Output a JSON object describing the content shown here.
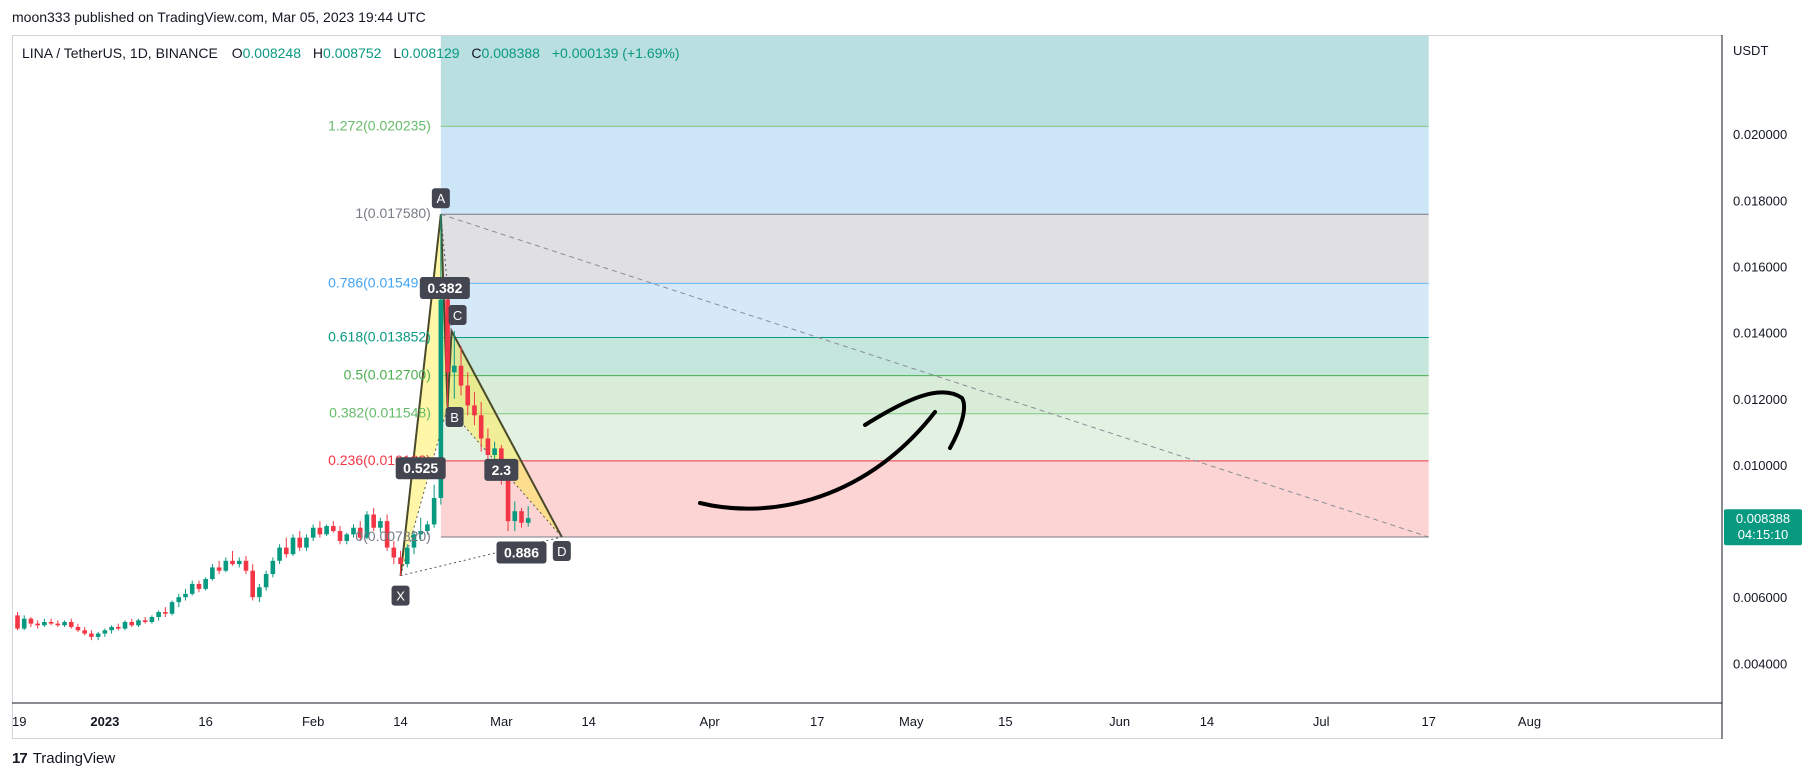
{
  "header": {
    "publisher_line": "moon333 published on TradingView.com, Mar 05, 2023 19:44 UTC"
  },
  "footer": {
    "brand": "TradingView",
    "logo_glyph": "17"
  },
  "chart_data": {
    "type": "candlestick",
    "symbol_line": {
      "name": "LINA / TetherUS, 1D, BINANCE",
      "o_label": "O",
      "o": "0.008248",
      "h_label": "H",
      "h": "0.008752",
      "l_label": "L",
      "l": "0.008129",
      "c_label": "C",
      "c": "0.008388",
      "change": "+0.000139 (+1.69%)"
    },
    "y_axis": {
      "unit": "USDT",
      "range": [
        0.0028,
        0.023
      ],
      "ticks": [
        "0.004000",
        "0.006000",
        "0.008000",
        "0.010000",
        "0.012000",
        "0.014000",
        "0.016000",
        "0.018000",
        "0.020000"
      ],
      "tick_values": [
        0.004,
        0.006,
        0.008,
        0.01,
        0.012,
        0.014,
        0.016,
        0.018,
        0.02
      ]
    },
    "x_axis": {
      "labels": [
        {
          "text": "19",
          "date": "2022-12-19",
          "bold": false
        },
        {
          "text": "2023",
          "date": "2023-01-01",
          "bold": true
        },
        {
          "text": "16",
          "date": "2023-01-16",
          "bold": false
        },
        {
          "text": "Feb",
          "date": "2023-02-01",
          "bold": false
        },
        {
          "text": "14",
          "date": "2023-02-14",
          "bold": false
        },
        {
          "text": "Mar",
          "date": "2023-03-01",
          "bold": false
        },
        {
          "text": "14",
          "date": "2023-03-14",
          "bold": false
        },
        {
          "text": "Apr",
          "date": "2023-04-01",
          "bold": false
        },
        {
          "text": "17",
          "date": "2023-04-17",
          "bold": false
        },
        {
          "text": "May",
          "date": "2023-05-01",
          "bold": false
        },
        {
          "text": "15",
          "date": "2023-05-15",
          "bold": false
        },
        {
          "text": "Jun",
          "date": "2023-06-01",
          "bold": false
        },
        {
          "text": "14",
          "date": "2023-06-14",
          "bold": false
        },
        {
          "text": "Jul",
          "date": "2023-07-01",
          "bold": false
        },
        {
          "text": "17",
          "date": "2023-07-17",
          "bold": false
        },
        {
          "text": "Aug",
          "date": "2023-08-01",
          "bold": false
        }
      ]
    },
    "last_price": {
      "value": "0.008388",
      "countdown": "04:15:10",
      "color": "#089981"
    },
    "colors": {
      "up": "#089981",
      "down": "#f23645"
    },
    "fib_levels": [
      {
        "label": "1.272(0.020235)",
        "ratio": 1.272,
        "price": 0.020235,
        "line_color": "#81c784",
        "text_color": "#66bb6a",
        "fill": "#b9dfe0"
      },
      {
        "label": "1(0.017580)",
        "ratio": 1.0,
        "price": 0.01758,
        "line_color": "#787b86",
        "text_color": "#787b86",
        "fill": "#cde6f7"
      },
      {
        "label": "0.786(0.015491)",
        "ratio": 0.786,
        "price": 0.015491,
        "line_color": "#64b5f6",
        "text_color": "#42a5f5",
        "fill": "#e0e0e2"
      },
      {
        "label": "0.618(0.013852)",
        "ratio": 0.618,
        "price": 0.013852,
        "line_color": "#089981",
        "text_color": "#089981",
        "fill": "#d6e9f9"
      },
      {
        "label": "0.5(0.012700)",
        "ratio": 0.5,
        "price": 0.0127,
        "line_color": "#4caf50",
        "text_color": "#4caf50",
        "fill": "#c4e6dc"
      },
      {
        "label": "0.382(0.011548)",
        "ratio": 0.382,
        "price": 0.011548,
        "line_color": "#81c784",
        "text_color": "#66bb6a",
        "fill": "#d8ecd7"
      },
      {
        "label": "0.236(0.010123)",
        "ratio": 0.236,
        "price": 0.010123,
        "line_color": "#f23645",
        "text_color": "#f23645",
        "fill": "#e3f1e2"
      },
      {
        "label": "0(0.007820)",
        "ratio": 0.0,
        "price": 0.00782,
        "line_color": "#787b86",
        "text_color": "#787b86",
        "fill": "#fbd4d3"
      }
    ],
    "fib_range_dates": [
      "2023-02-20",
      "2023-07-17"
    ],
    "trend_line": {
      "from": {
        "date": "2023-02-20",
        "price": 0.01758
      },
      "to": {
        "date": "2023-07-17",
        "price": 0.00782
      }
    },
    "harmonic_pattern": {
      "points": [
        {
          "label": "X",
          "date": "2023-02-14",
          "price": 0.00665
        },
        {
          "label": "A",
          "date": "2023-02-20",
          "price": 0.01758
        },
        {
          "label": "B",
          "date": "2023-02-21",
          "price": 0.01175
        },
        {
          "label": "C",
          "date": "2023-02-21",
          "price": 0.01405
        },
        {
          "label": "D",
          "date": "2023-03-10",
          "price": 0.00782
        }
      ],
      "ratios": [
        {
          "text": "0.382",
          "date": "2023-02-20",
          "price": 0.01535
        },
        {
          "text": "0.525",
          "date": "2023-02-17",
          "price": 0.0099
        },
        {
          "text": "0.886",
          "date": "2023-03-04",
          "price": 0.00735
        },
        {
          "text": "2.3",
          "date": "2023-03-01",
          "price": 0.00985
        }
      ]
    },
    "candles": [
      {
        "date": "2022-12-19",
        "o": 0.00545,
        "h": 0.00555,
        "l": 0.005,
        "c": 0.00505
      },
      {
        "date": "2022-12-20",
        "o": 0.00505,
        "h": 0.00545,
        "l": 0.005,
        "c": 0.00535
      },
      {
        "date": "2022-12-21",
        "o": 0.00535,
        "h": 0.0054,
        "l": 0.0051,
        "c": 0.0052
      },
      {
        "date": "2022-12-22",
        "o": 0.0052,
        "h": 0.0053,
        "l": 0.00505,
        "c": 0.00515
      },
      {
        "date": "2022-12-23",
        "o": 0.00515,
        "h": 0.00535,
        "l": 0.0051,
        "c": 0.00525
      },
      {
        "date": "2022-12-24",
        "o": 0.00525,
        "h": 0.00535,
        "l": 0.00515,
        "c": 0.0052
      },
      {
        "date": "2022-12-25",
        "o": 0.0052,
        "h": 0.0053,
        "l": 0.0051,
        "c": 0.00515
      },
      {
        "date": "2022-12-26",
        "o": 0.00515,
        "h": 0.0053,
        "l": 0.0051,
        "c": 0.00525
      },
      {
        "date": "2022-12-27",
        "o": 0.00525,
        "h": 0.00535,
        "l": 0.00505,
        "c": 0.0051
      },
      {
        "date": "2022-12-28",
        "o": 0.0051,
        "h": 0.0052,
        "l": 0.00495,
        "c": 0.005
      },
      {
        "date": "2022-12-29",
        "o": 0.005,
        "h": 0.0051,
        "l": 0.00485,
        "c": 0.0049
      },
      {
        "date": "2022-12-30",
        "o": 0.0049,
        "h": 0.005,
        "l": 0.0047,
        "c": 0.0048
      },
      {
        "date": "2022-12-31",
        "o": 0.0048,
        "h": 0.00495,
        "l": 0.0047,
        "c": 0.0049
      },
      {
        "date": "2023-01-01",
        "o": 0.0049,
        "h": 0.00505,
        "l": 0.0048,
        "c": 0.005
      },
      {
        "date": "2023-01-02",
        "o": 0.005,
        "h": 0.00515,
        "l": 0.0049,
        "c": 0.0051
      },
      {
        "date": "2023-01-03",
        "o": 0.0051,
        "h": 0.0052,
        "l": 0.005,
        "c": 0.00505
      },
      {
        "date": "2023-01-04",
        "o": 0.00505,
        "h": 0.0053,
        "l": 0.005,
        "c": 0.00525
      },
      {
        "date": "2023-01-05",
        "o": 0.00525,
        "h": 0.00535,
        "l": 0.0051,
        "c": 0.00515
      },
      {
        "date": "2023-01-06",
        "o": 0.00515,
        "h": 0.00535,
        "l": 0.0051,
        "c": 0.0053
      },
      {
        "date": "2023-01-07",
        "o": 0.0053,
        "h": 0.0054,
        "l": 0.0052,
        "c": 0.00525
      },
      {
        "date": "2023-01-08",
        "o": 0.00525,
        "h": 0.00545,
        "l": 0.0052,
        "c": 0.0054
      },
      {
        "date": "2023-01-09",
        "o": 0.0054,
        "h": 0.0056,
        "l": 0.0053,
        "c": 0.00555
      },
      {
        "date": "2023-01-10",
        "o": 0.00555,
        "h": 0.0057,
        "l": 0.0054,
        "c": 0.0055
      },
      {
        "date": "2023-01-11",
        "o": 0.0055,
        "h": 0.0059,
        "l": 0.00545,
        "c": 0.00585
      },
      {
        "date": "2023-01-12",
        "o": 0.00585,
        "h": 0.0061,
        "l": 0.0057,
        "c": 0.006
      },
      {
        "date": "2023-01-13",
        "o": 0.006,
        "h": 0.00625,
        "l": 0.0059,
        "c": 0.0061
      },
      {
        "date": "2023-01-14",
        "o": 0.0061,
        "h": 0.0065,
        "l": 0.00605,
        "c": 0.0064
      },
      {
        "date": "2023-01-15",
        "o": 0.0064,
        "h": 0.0065,
        "l": 0.00615,
        "c": 0.00625
      },
      {
        "date": "2023-01-16",
        "o": 0.00625,
        "h": 0.0066,
        "l": 0.0062,
        "c": 0.00655
      },
      {
        "date": "2023-01-17",
        "o": 0.00655,
        "h": 0.007,
        "l": 0.0065,
        "c": 0.0069
      },
      {
        "date": "2023-01-18",
        "o": 0.0069,
        "h": 0.0071,
        "l": 0.0067,
        "c": 0.0068
      },
      {
        "date": "2023-01-19",
        "o": 0.0068,
        "h": 0.0072,
        "l": 0.00675,
        "c": 0.0071
      },
      {
        "date": "2023-01-20",
        "o": 0.0071,
        "h": 0.0074,
        "l": 0.00695,
        "c": 0.007
      },
      {
        "date": "2023-01-21",
        "o": 0.007,
        "h": 0.0072,
        "l": 0.0069,
        "c": 0.0071
      },
      {
        "date": "2023-01-22",
        "o": 0.0071,
        "h": 0.00725,
        "l": 0.0067,
        "c": 0.0068
      },
      {
        "date": "2023-01-23",
        "o": 0.0068,
        "h": 0.007,
        "l": 0.0059,
        "c": 0.006
      },
      {
        "date": "2023-01-24",
        "o": 0.006,
        "h": 0.0064,
        "l": 0.00585,
        "c": 0.0063
      },
      {
        "date": "2023-01-25",
        "o": 0.0063,
        "h": 0.0068,
        "l": 0.0062,
        "c": 0.0067
      },
      {
        "date": "2023-01-26",
        "o": 0.0067,
        "h": 0.0072,
        "l": 0.0066,
        "c": 0.0071
      },
      {
        "date": "2023-01-27",
        "o": 0.0071,
        "h": 0.0076,
        "l": 0.007,
        "c": 0.0075
      },
      {
        "date": "2023-01-28",
        "o": 0.0075,
        "h": 0.0078,
        "l": 0.0072,
        "c": 0.0073
      },
      {
        "date": "2023-01-29",
        "o": 0.0073,
        "h": 0.0079,
        "l": 0.00725,
        "c": 0.0078
      },
      {
        "date": "2023-01-30",
        "o": 0.0078,
        "h": 0.008,
        "l": 0.0074,
        "c": 0.0075
      },
      {
        "date": "2023-01-31",
        "o": 0.0075,
        "h": 0.0079,
        "l": 0.0074,
        "c": 0.0078
      },
      {
        "date": "2023-02-01",
        "o": 0.0078,
        "h": 0.0082,
        "l": 0.0077,
        "c": 0.0081
      },
      {
        "date": "2023-02-02",
        "o": 0.0081,
        "h": 0.0083,
        "l": 0.0078,
        "c": 0.0079
      },
      {
        "date": "2023-02-03",
        "o": 0.0079,
        "h": 0.0082,
        "l": 0.00785,
        "c": 0.00815
      },
      {
        "date": "2023-02-04",
        "o": 0.00815,
        "h": 0.0083,
        "l": 0.00795,
        "c": 0.008
      },
      {
        "date": "2023-02-05",
        "o": 0.008,
        "h": 0.00815,
        "l": 0.0076,
        "c": 0.0077
      },
      {
        "date": "2023-02-06",
        "o": 0.0077,
        "h": 0.00795,
        "l": 0.0076,
        "c": 0.0079
      },
      {
        "date": "2023-02-07",
        "o": 0.0079,
        "h": 0.0082,
        "l": 0.0078,
        "c": 0.0081
      },
      {
        "date": "2023-02-08",
        "o": 0.0081,
        "h": 0.0083,
        "l": 0.0077,
        "c": 0.0078
      },
      {
        "date": "2023-02-09",
        "o": 0.0078,
        "h": 0.0086,
        "l": 0.00775,
        "c": 0.0085
      },
      {
        "date": "2023-02-10",
        "o": 0.0085,
        "h": 0.0087,
        "l": 0.008,
        "c": 0.0081
      },
      {
        "date": "2023-02-11",
        "o": 0.0081,
        "h": 0.0084,
        "l": 0.00795,
        "c": 0.0083
      },
      {
        "date": "2023-02-12",
        "o": 0.0083,
        "h": 0.0085,
        "l": 0.0074,
        "c": 0.0075
      },
      {
        "date": "2023-02-13",
        "o": 0.0075,
        "h": 0.0077,
        "l": 0.007,
        "c": 0.0072
      },
      {
        "date": "2023-02-14",
        "o": 0.0072,
        "h": 0.0074,
        "l": 0.00665,
        "c": 0.007
      },
      {
        "date": "2023-02-15",
        "o": 0.007,
        "h": 0.0076,
        "l": 0.0069,
        "c": 0.0075
      },
      {
        "date": "2023-02-16",
        "o": 0.0075,
        "h": 0.008,
        "l": 0.0073,
        "c": 0.0079
      },
      {
        "date": "2023-02-17",
        "o": 0.0079,
        "h": 0.0084,
        "l": 0.0077,
        "c": 0.008
      },
      {
        "date": "2023-02-18",
        "o": 0.008,
        "h": 0.0083,
        "l": 0.0079,
        "c": 0.0082
      },
      {
        "date": "2023-02-19",
        "o": 0.0082,
        "h": 0.0094,
        "l": 0.0081,
        "c": 0.009
      },
      {
        "date": "2023-02-20",
        "o": 0.009,
        "h": 0.01758,
        "l": 0.0088,
        "c": 0.015
      },
      {
        "date": "2023-02-21",
        "o": 0.015,
        "h": 0.0156,
        "l": 0.01175,
        "c": 0.0128
      },
      {
        "date": "2023-02-22",
        "o": 0.0128,
        "h": 0.01405,
        "l": 0.012,
        "c": 0.013
      },
      {
        "date": "2023-02-23",
        "o": 0.013,
        "h": 0.0136,
        "l": 0.0121,
        "c": 0.0124
      },
      {
        "date": "2023-02-24",
        "o": 0.0124,
        "h": 0.0128,
        "l": 0.0115,
        "c": 0.0118
      },
      {
        "date": "2023-02-25",
        "o": 0.0118,
        "h": 0.0122,
        "l": 0.0112,
        "c": 0.0115
      },
      {
        "date": "2023-02-26",
        "o": 0.0115,
        "h": 0.0119,
        "l": 0.0104,
        "c": 0.0108
      },
      {
        "date": "2023-02-27",
        "o": 0.0108,
        "h": 0.0111,
        "l": 0.01,
        "c": 0.0103
      },
      {
        "date": "2023-02-28",
        "o": 0.0103,
        "h": 0.0107,
        "l": 0.0099,
        "c": 0.0105
      },
      {
        "date": "2023-03-01",
        "o": 0.0105,
        "h": 0.0106,
        "l": 0.0094,
        "c": 0.0097
      },
      {
        "date": "2023-03-02",
        "o": 0.0097,
        "h": 0.0099,
        "l": 0.008,
        "c": 0.0083
      },
      {
        "date": "2023-03-03",
        "o": 0.0083,
        "h": 0.0089,
        "l": 0.008,
        "c": 0.0086
      },
      {
        "date": "2023-03-04",
        "o": 0.0086,
        "h": 0.0087,
        "l": 0.0081,
        "c": 0.00825
      },
      {
        "date": "2023-03-05",
        "o": 0.00825,
        "h": 0.00875,
        "l": 0.00813,
        "c": 0.00839
      }
    ]
  }
}
